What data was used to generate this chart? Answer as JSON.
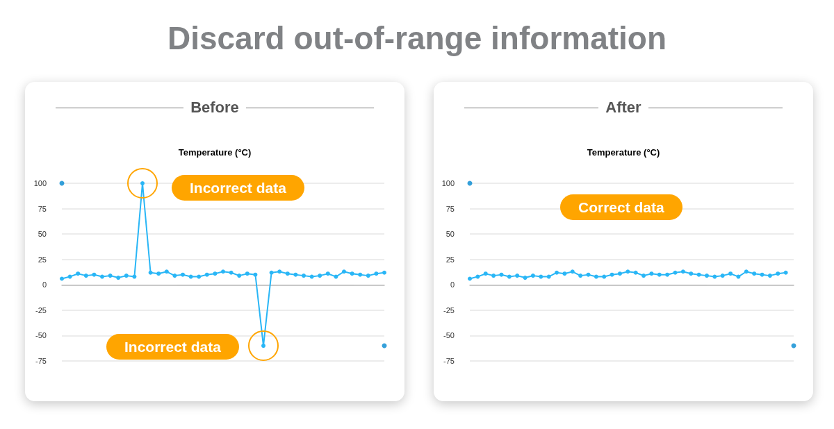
{
  "chart_data": [
    {
      "type": "line",
      "title": "Before",
      "subtitle": "Temperature (°C)",
      "categories": [
        null,
        null,
        null,
        null,
        null,
        null,
        null,
        null,
        null,
        null,
        null,
        null,
        null,
        null,
        null,
        null,
        null,
        null,
        null,
        null,
        null,
        null,
        null,
        null,
        null,
        null,
        null,
        null,
        null,
        null,
        null,
        null,
        null,
        null,
        null,
        null,
        null,
        null,
        null,
        null,
        null
      ],
      "series": [
        {
          "color": "#29b6f6",
          "values": [
            6,
            8,
            11,
            9,
            10,
            8,
            9,
            7,
            9,
            8,
            100,
            12,
            11,
            13,
            9,
            10,
            8,
            8,
            10,
            11,
            13,
            12,
            9,
            11,
            10,
            -60,
            12,
            13,
            11,
            10,
            9,
            8,
            9,
            11,
            8,
            13,
            11,
            10,
            9,
            11,
            12
          ]
        },
        {
          "type": "scatter",
          "color": "#0288d1",
          "values": [
            100,
            null,
            null,
            null,
            null,
            null,
            null,
            null,
            null,
            null,
            null,
            null,
            null,
            null,
            null,
            null,
            null,
            null,
            null,
            null,
            null,
            null,
            null,
            null,
            null,
            null,
            null,
            null,
            null,
            null,
            null,
            null,
            null,
            null,
            null,
            null,
            null,
            null,
            null,
            null,
            -60
          ]
        }
      ],
      "ylim": [
        -75,
        100
      ],
      "yticks": [
        -75,
        -50,
        -25,
        0,
        25,
        50,
        75,
        100
      ],
      "grid": "y",
      "marker": "circle",
      "annotations": [
        "Discard out-of-range information",
        "Incorrect data",
        "Incorrect data"
      ]
    },
    {
      "type": "line",
      "title": "After",
      "subtitle": "Temperature (°C)",
      "categories": [
        null,
        null,
        null,
        null,
        null,
        null,
        null,
        null,
        null,
        null,
        null,
        null,
        null,
        null,
        null,
        null,
        null,
        null,
        null,
        null,
        null,
        null,
        null,
        null,
        null,
        null,
        null,
        null,
        null,
        null,
        null,
        null,
        null,
        null,
        null,
        null,
        null,
        null,
        null,
        null,
        null,
        null
      ],
      "series": [
        {
          "color": "#29b6f6",
          "values": [
            6,
            8,
            11,
            9,
            10,
            8,
            9,
            7,
            9,
            8,
            8,
            12,
            11,
            13,
            9,
            10,
            8,
            8,
            10,
            11,
            13,
            12,
            9,
            11,
            10,
            10,
            12,
            13,
            11,
            10,
            9,
            8,
            9,
            11,
            8,
            13,
            11,
            10,
            9,
            11,
            12,
            null
          ]
        },
        {
          "type": "scatter",
          "color": "#0288d1",
          "values": [
            100,
            null,
            null,
            null,
            null,
            null,
            null,
            null,
            null,
            null,
            null,
            null,
            null,
            null,
            null,
            null,
            null,
            null,
            null,
            null,
            null,
            null,
            null,
            null,
            null,
            null,
            null,
            null,
            null,
            null,
            null,
            null,
            null,
            null,
            null,
            null,
            null,
            null,
            null,
            null,
            null,
            -60
          ]
        }
      ],
      "ylim": [
        -75,
        100
      ],
      "yticks": [
        -75,
        -50,
        -25,
        0,
        25,
        50,
        75,
        100
      ],
      "grid": "y",
      "marker": "circle",
      "annotations": [
        "Correct data"
      ]
    }
  ]
}
